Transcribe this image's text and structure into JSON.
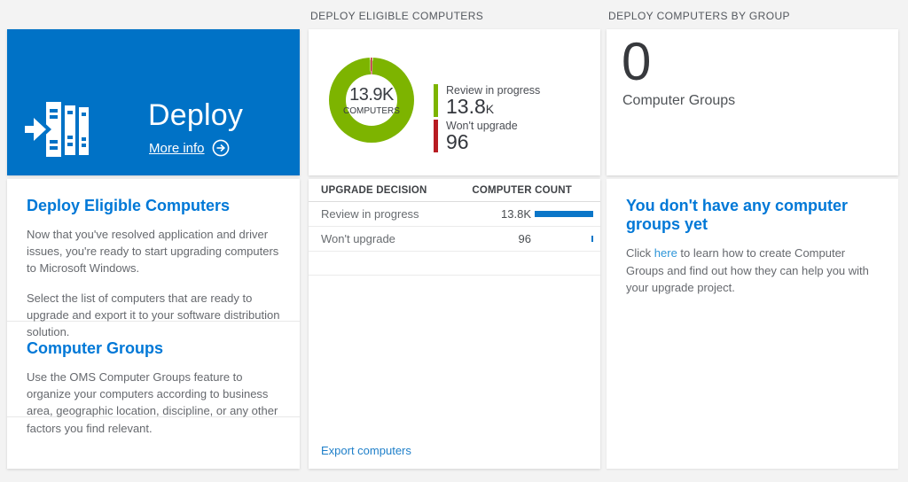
{
  "colors": {
    "tile_blue": "#0072c6",
    "heading_blue": "#0078d7",
    "donut_green": "#7db400",
    "donut_red": "#b81c22",
    "bar_blue": "#0b76c8",
    "link_blue": "#1e7fc9",
    "page_background": "#f3f3f3"
  },
  "deploy": {
    "tile": {
      "title": "Deploy",
      "more_info_label": "More info"
    },
    "sections": [
      {
        "heading": "Deploy Eligible Computers",
        "paragraphs": [
          "Now that you've resolved application and driver issues, you're ready to start upgrading computers to Microsoft Windows.",
          "Select the list of computers that are ready to upgrade and export it to your software distribution solution."
        ]
      },
      {
        "heading": "Computer Groups",
        "paragraphs": [
          "Use the OMS Computer Groups feature to organize your computers according to business area, geographic location, discipline, or any other factors you find relevant."
        ]
      }
    ]
  },
  "eligible": {
    "column_header": "DEPLOY ELIGIBLE COMPUTERS",
    "donut_center": {
      "value": "13.9K",
      "label": "COMPUTERS"
    },
    "legend": [
      {
        "label": "Review in progress",
        "value": "13.8",
        "suffix": "K",
        "color": "#7db400"
      },
      {
        "label": "Won't upgrade",
        "value": "96",
        "suffix": "",
        "color": "#b81c22"
      }
    ],
    "table": {
      "headers": {
        "decision": "UPGRADE DECISION",
        "count": "COMPUTER COUNT"
      },
      "rows": [
        {
          "decision": "Review in progress",
          "count": "13.8K",
          "bar_pct": 100
        },
        {
          "decision": "Won't upgrade",
          "count": "96",
          "bar_pct": 1.5
        }
      ]
    },
    "export_label": "Export computers"
  },
  "groups": {
    "column_header": "DEPLOY COMPUTERS BY GROUP",
    "tile": {
      "value": "0",
      "label": "Computer Groups"
    },
    "empty_state": {
      "heading": "You don't have any computer groups yet",
      "text_before": "Click ",
      "link_text": "here",
      "text_after": " to learn how to create Computer Groups and find out how they can help you with your upgrade project."
    }
  },
  "chart_data": {
    "type": "pie",
    "title": "DEPLOY ELIGIBLE COMPUTERS",
    "center_label": "13.9K COMPUTERS",
    "categories": [
      "Review in progress",
      "Won't upgrade"
    ],
    "values": [
      13800,
      96
    ],
    "colors": [
      "#7db400",
      "#b81c22"
    ],
    "legend_position": "right"
  }
}
